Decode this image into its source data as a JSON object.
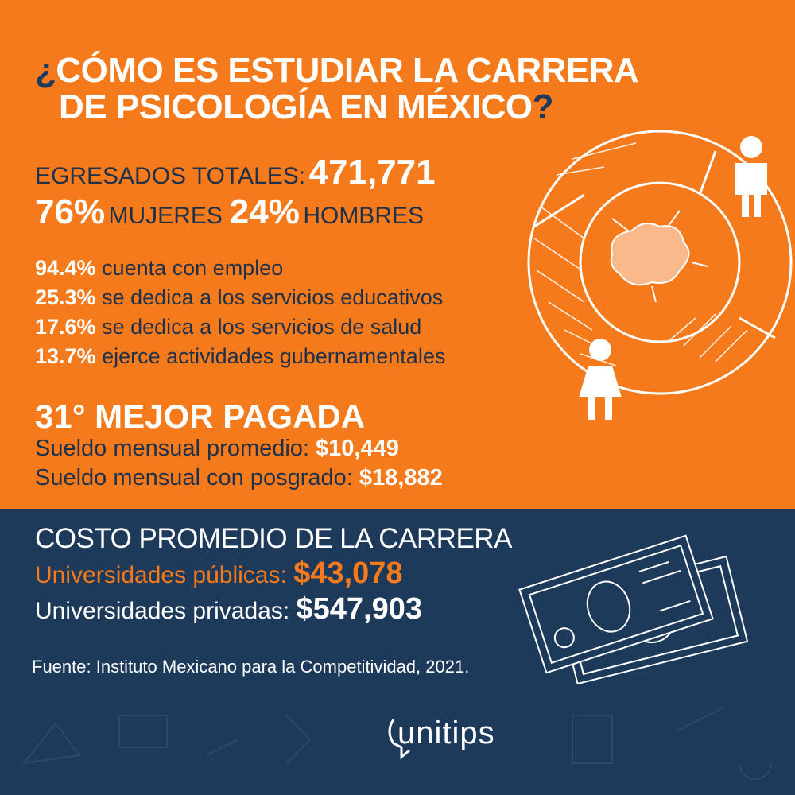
{
  "header": {
    "open_mark": "¿",
    "line1": "CÓMO ES ESTUDIAR LA CARRERA",
    "line2": "DE PSICOLOGÍA EN MÉXICO",
    "close_mark": "?"
  },
  "graduates": {
    "label": "EGRESADOS TOTALES:",
    "value": "471,771"
  },
  "gender": {
    "women_value": "76%",
    "women_label": "MUJERES",
    "men_value": "24%",
    "men_label": "HOMBRES"
  },
  "stats": [
    {
      "value": "94.4%",
      "text": "cuenta con empleo"
    },
    {
      "value": "25.3%",
      "text": "se dedica a los servicios educativos"
    },
    {
      "value": "17.6%",
      "text": "se dedica a los servicios de salud"
    },
    {
      "value": "13.7%",
      "text": "ejerce actividades gubernamentales"
    }
  ],
  "salary": {
    "rank": "31° MEJOR PAGADA",
    "rows": [
      {
        "label": "Sueldo mensual promedio:",
        "value": "$10,449"
      },
      {
        "label": "Sueldo mensual con posgrado:",
        "value": "$18,882"
      }
    ]
  },
  "cost": {
    "title": "COSTO PROMEDIO DE LA CARRERA",
    "rows": [
      {
        "label": "Universidades públicas:",
        "value": "$43,078"
      },
      {
        "label": "Universidades privadas:",
        "value": "$547,903"
      }
    ]
  },
  "source": "Fuente: Instituto Mexicano para la Competitividad, 2021.",
  "logo": "unitips"
}
